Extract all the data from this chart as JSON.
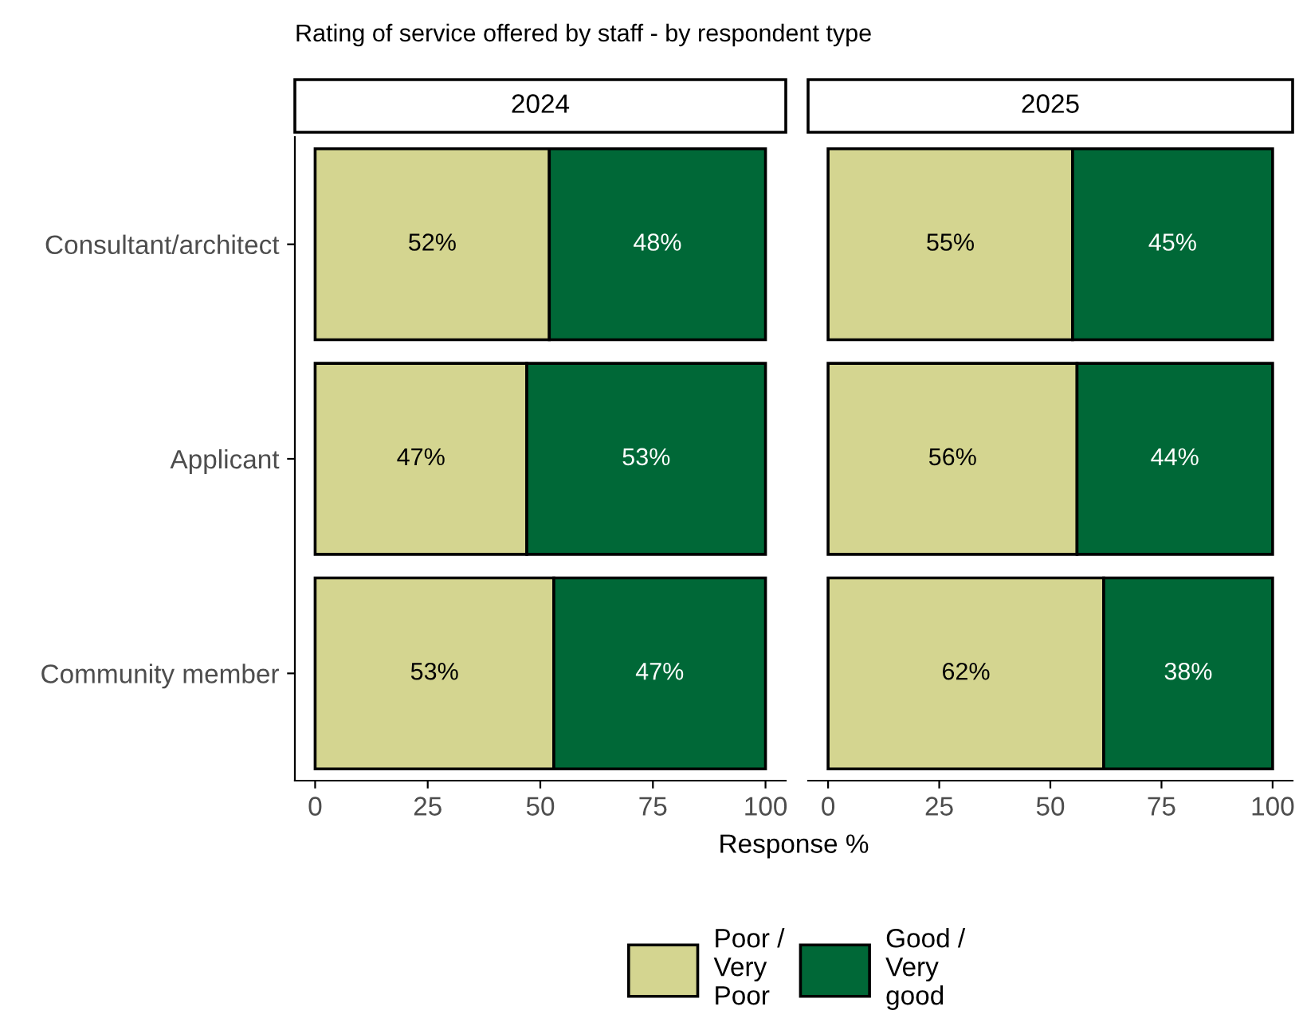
{
  "chart_data": [
    {
      "type": "bar",
      "orientation": "horizontal",
      "stacked": true,
      "title": "Rating of service offered by staff - by respondent type",
      "subtitle": "2024",
      "xlabel": "Response %",
      "categories": [
        "Consultant/architect",
        "Applicant",
        "Community member"
      ],
      "series": [
        {
          "name": "Poor / Very Poor",
          "color": "#d4d590",
          "values": [
            52,
            47,
            53
          ],
          "value_labels": [
            "52%",
            "47%",
            "53%"
          ]
        },
        {
          "name": "Good / Very good",
          "color": "#006837",
          "values": [
            48,
            53,
            47
          ],
          "value_labels": [
            "48%",
            "53%",
            "47%"
          ]
        }
      ],
      "xlim": [
        -4.5,
        104.5
      ],
      "xticks": [
        0,
        25,
        50,
        75,
        100
      ],
      "legend": "bottom",
      "grid": false
    },
    {
      "type": "bar",
      "orientation": "horizontal",
      "stacked": true,
      "subtitle": "2025",
      "series": [
        {
          "color": "#d4d590",
          "values": [
            55,
            56,
            62
          ],
          "value_labels": [
            "55%",
            "56%",
            "62%"
          ]
        },
        {
          "color": "#006837",
          "values": [
            45,
            44,
            38
          ],
          "value_labels": [
            "45%",
            "44%",
            "38%"
          ]
        }
      ],
      "xlim": [
        -4.5,
        104.5
      ],
      "xticks": [
        0,
        25,
        50,
        75,
        100
      ],
      "tick_labels": "x",
      "grid": false
    }
  ]
}
